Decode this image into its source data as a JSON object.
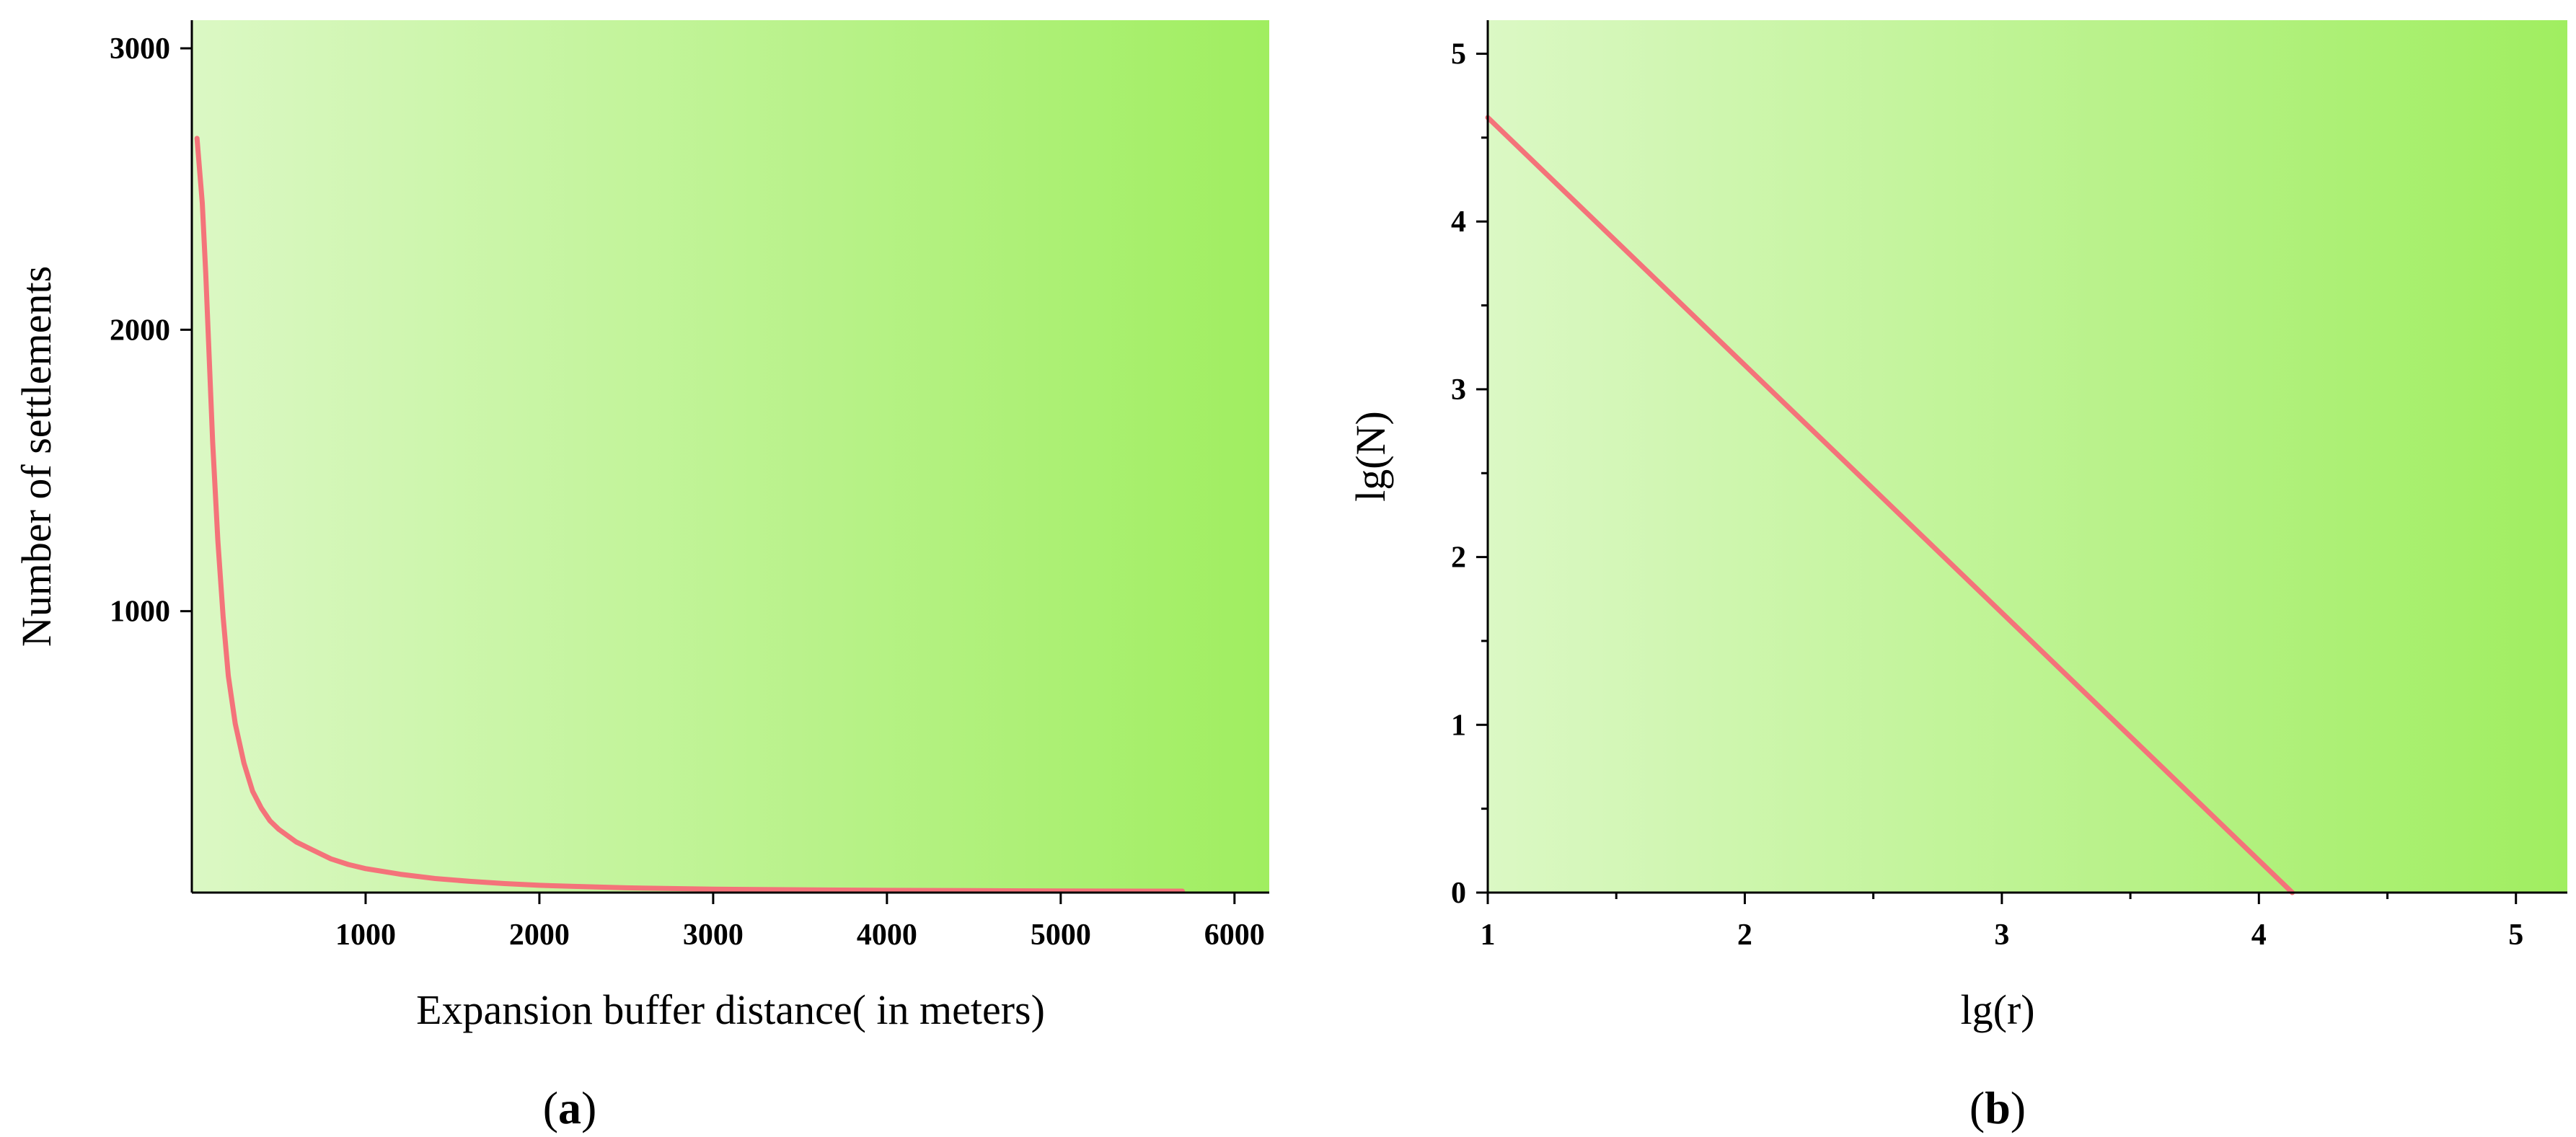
{
  "colors": {
    "line": "#f4737a",
    "bg_start": "#dbf8c4",
    "bg_end": "#a0ee60"
  },
  "chart_data": [
    {
      "panel_label": "a",
      "type": "line",
      "title": "",
      "xlabel": "Expansion buffer distance( in meters)",
      "ylabel": "Number of settlements",
      "xlim": [
        0,
        6200
      ],
      "ylim": [
        0,
        3100
      ],
      "xticks": [
        1000,
        2000,
        3000,
        4000,
        5000,
        6000
      ],
      "yticks": [
        1000,
        2000,
        3000
      ],
      "grid": false,
      "series": [
        {
          "x": [
            30,
            60,
            80,
            100,
            120,
            150,
            180,
            210,
            250,
            300,
            350,
            400,
            450,
            500,
            600,
            700,
            800,
            900,
            1000,
            1200,
            1400,
            1600,
            1800,
            2000,
            2200,
            2500,
            3000,
            3500,
            4000,
            4500,
            5000,
            5500,
            5700
          ],
          "y": [
            2680,
            2450,
            2200,
            1900,
            1600,
            1250,
            980,
            770,
            600,
            460,
            360,
            300,
            255,
            225,
            180,
            150,
            120,
            100,
            85,
            65,
            50,
            40,
            32,
            26,
            22,
            17,
            12,
            10,
            8,
            7,
            6,
            5,
            5
          ]
        }
      ]
    },
    {
      "panel_label": "b",
      "type": "line",
      "title": "",
      "xlabel": "lg(r)",
      "ylabel": "lg(N)",
      "xlim": [
        1,
        5.2
      ],
      "ylim": [
        0,
        5.2
      ],
      "xticks": [
        1,
        2,
        3,
        4,
        5
      ],
      "yticks": [
        0,
        1,
        2,
        3,
        4,
        5
      ],
      "grid": false,
      "series": [
        {
          "x": [
            1,
            4.13
          ],
          "y": [
            4.62,
            0
          ]
        }
      ]
    }
  ]
}
